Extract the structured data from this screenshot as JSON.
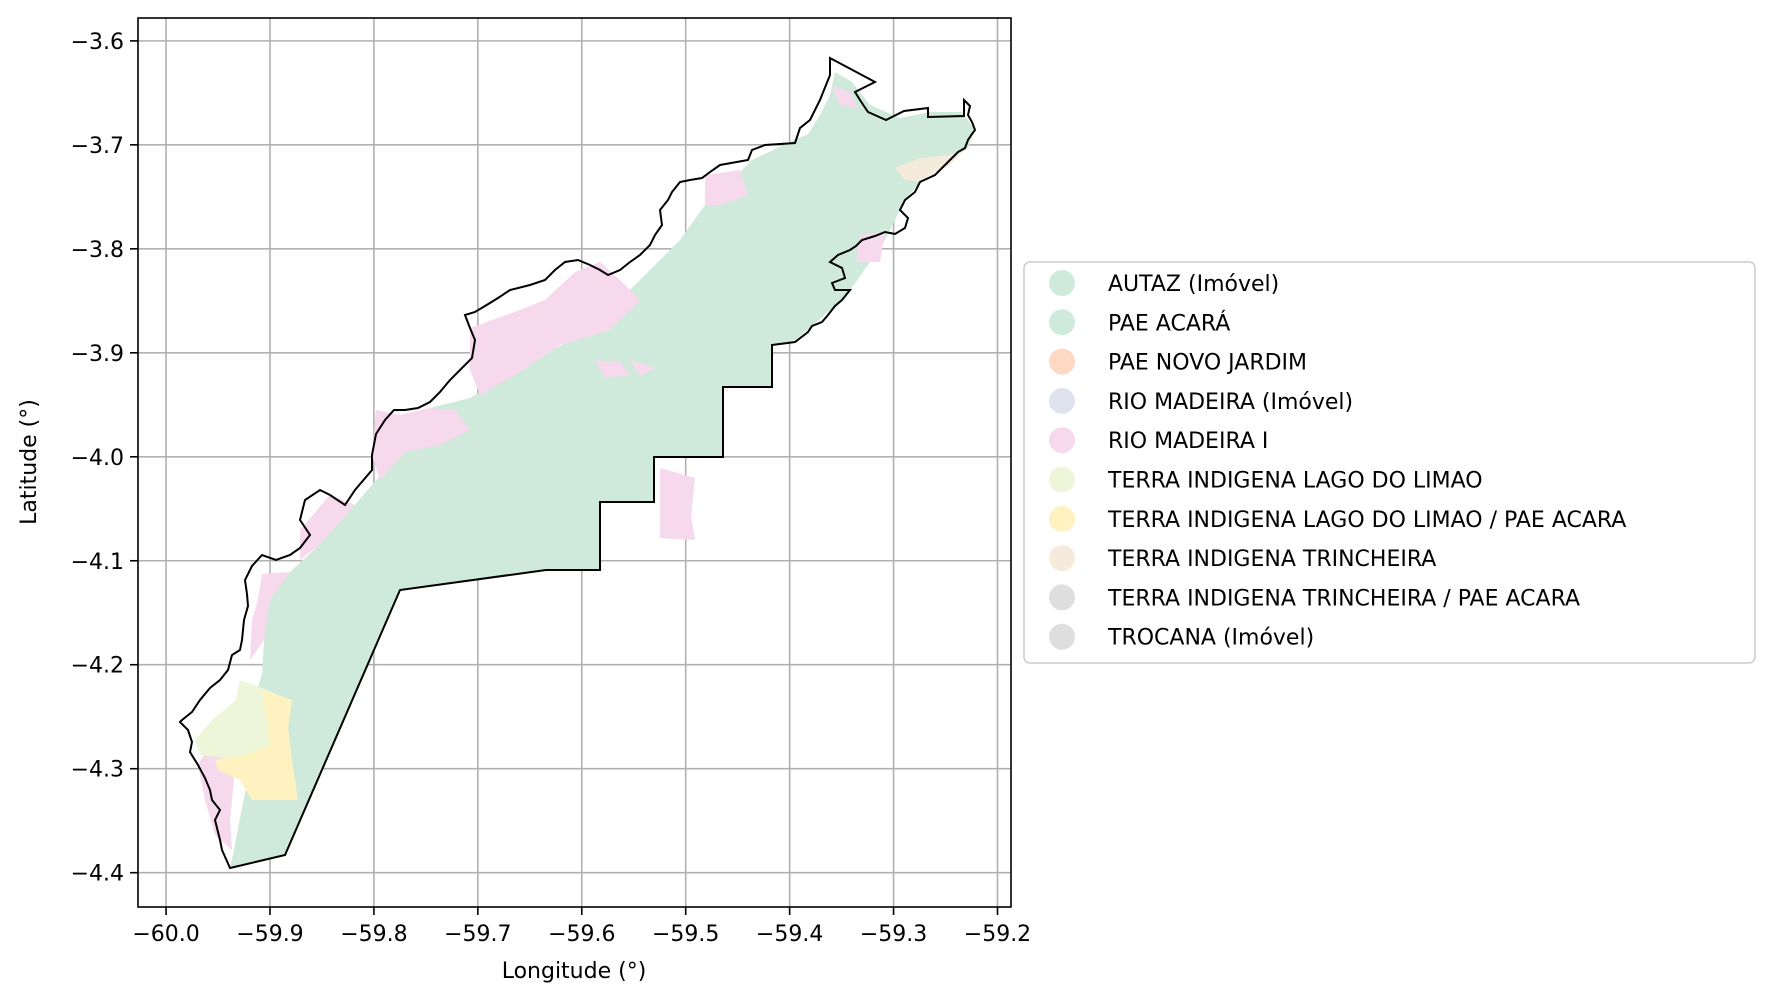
{
  "figure": {
    "xlabel": "Longitude (°)",
    "ylabel": "Latitude (°)",
    "xlim": [
      -60.027,
      -59.187
    ],
    "ylim": [
      -4.433,
      -3.578
    ],
    "xticks": [
      -60.0,
      -59.9,
      -59.8,
      -59.7,
      -59.6,
      -59.5,
      -59.4,
      -59.3,
      -59.2
    ],
    "yticks": [
      -3.6,
      -3.7,
      -3.8,
      -3.9,
      -4.0,
      -4.1,
      -4.2,
      -4.3,
      -4.4
    ],
    "xtick_labels": [
      "−60.0",
      "−59.9",
      "−59.8",
      "−59.7",
      "−59.6",
      "−59.5",
      "−59.4",
      "−59.3",
      "−59.2"
    ],
    "ytick_labels": [
      "−3.6",
      "−3.7",
      "−3.8",
      "−3.9",
      "−4.0",
      "−4.1",
      "−4.2",
      "−4.3",
      "−4.4"
    ],
    "grid": true,
    "boundary_color": "#000000",
    "legend_position": "right"
  },
  "legend": [
    {
      "label": "AUTAZ (Imóvel)",
      "color": "#cfeadb"
    },
    {
      "label": "PAE ACARÁ",
      "color": "#cfeadb"
    },
    {
      "label": "PAE NOVO JARDIM",
      "color": "#fdd9c3"
    },
    {
      "label": "RIO MADEIRA (Imóvel)",
      "color": "#dfe3ef"
    },
    {
      "label": "RIO MADEIRA I",
      "color": "#f6d9ec"
    },
    {
      "label": "TERRA INDIGENA LAGO DO LIMAO",
      "color": "#eef6d9"
    },
    {
      "label": "TERRA INDIGENA LAGO DO LIMAO / PAE ACARA",
      "color": "#fff2c1"
    },
    {
      "label": "TERRA INDIGENA TRINCHEIRA",
      "color": "#f5ebdc"
    },
    {
      "label": "TERRA INDIGENA TRINCHEIRA / PAE ACARA",
      "color": "#dedede"
    },
    {
      "label": "TROCANA (Imóvel)",
      "color": "#dedede"
    }
  ]
}
